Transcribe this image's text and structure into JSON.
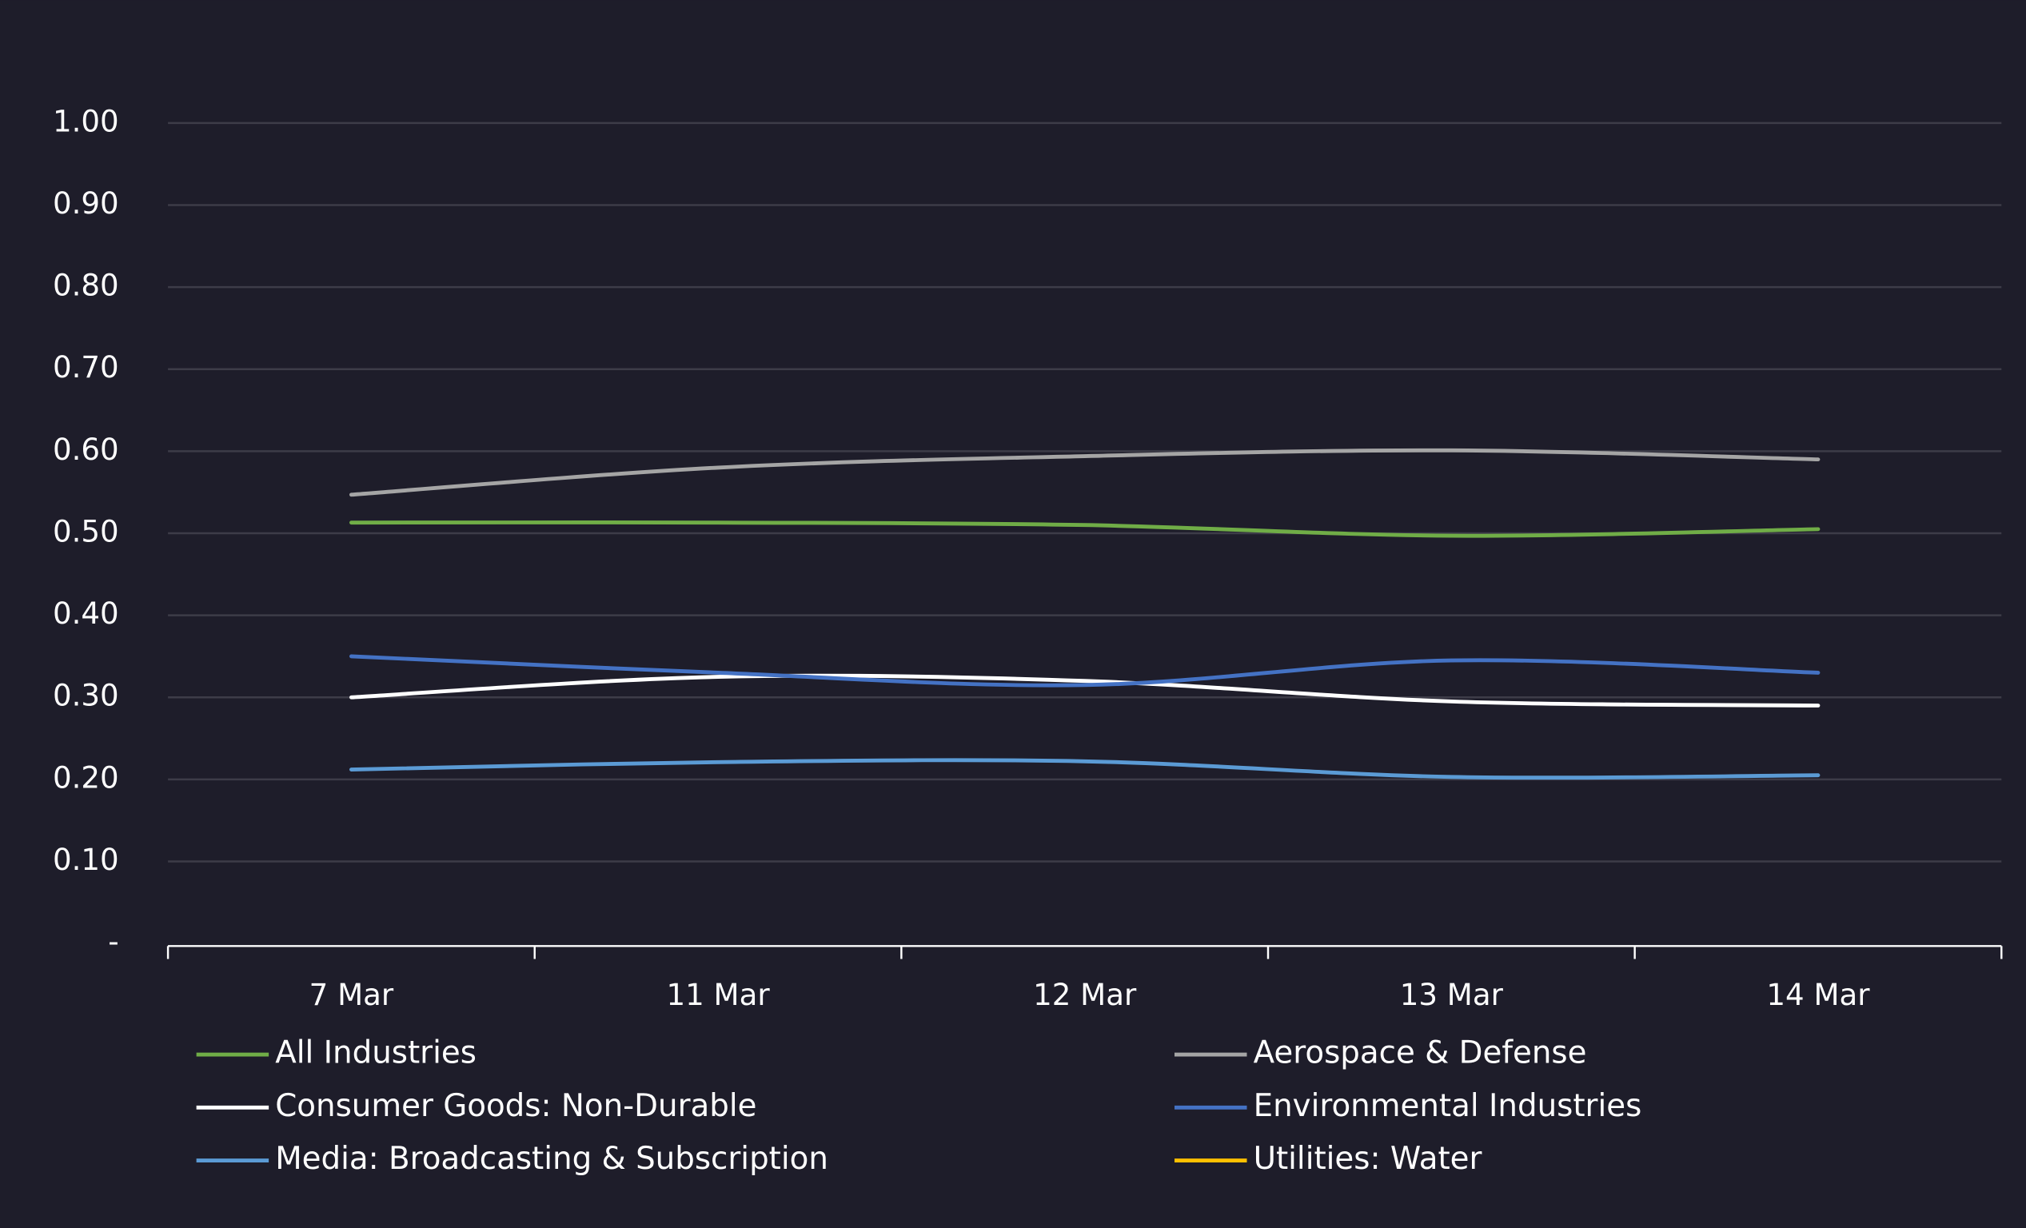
{
  "chart_data": {
    "type": "line",
    "categories": [
      "7 Mar",
      "11 Mar",
      "12 Mar",
      "13 Mar",
      "14 Mar"
    ],
    "series": [
      {
        "name": "All Industries",
        "color": "#70ad47",
        "values": [
          0.513,
          0.513,
          0.51,
          0.497,
          0.505
        ]
      },
      {
        "name": "Aerospace & Defense",
        "color": "#a5a5a5",
        "values": [
          0.547,
          0.58,
          0.594,
          0.601,
          0.59
        ]
      },
      {
        "name": "Consumer Goods: Non-Durable",
        "color": "#ffffff",
        "values": [
          0.3,
          0.325,
          0.32,
          0.295,
          0.29
        ]
      },
      {
        "name": "Environmental Industries",
        "color": "#4472c4",
        "values": [
          0.35,
          0.33,
          0.315,
          0.345,
          0.33
        ]
      },
      {
        "name": "Media: Broadcasting & Subscription",
        "color": "#5b9bd5",
        "values": [
          0.212,
          0.221,
          0.222,
          0.203,
          0.205
        ]
      },
      {
        "name": "Utilities: Water",
        "color": "#ffc000",
        "values": [
          null,
          null,
          null,
          null,
          null
        ]
      }
    ],
    "ylim": [
      0,
      1
    ],
    "yticks": [
      {
        "value": 0,
        "label": "-"
      },
      {
        "value": 0.1,
        "label": "0.10"
      },
      {
        "value": 0.2,
        "label": "0.20"
      },
      {
        "value": 0.3,
        "label": "0.30"
      },
      {
        "value": 0.4,
        "label": "0.40"
      },
      {
        "value": 0.5,
        "label": "0.50"
      },
      {
        "value": 0.6,
        "label": "0.60"
      },
      {
        "value": 0.7,
        "label": "0.70"
      },
      {
        "value": 0.8,
        "label": "0.80"
      },
      {
        "value": 0.9,
        "label": "0.90"
      },
      {
        "value": 1,
        "label": "1.00"
      }
    ],
    "grid": true,
    "legend": "bottom"
  }
}
